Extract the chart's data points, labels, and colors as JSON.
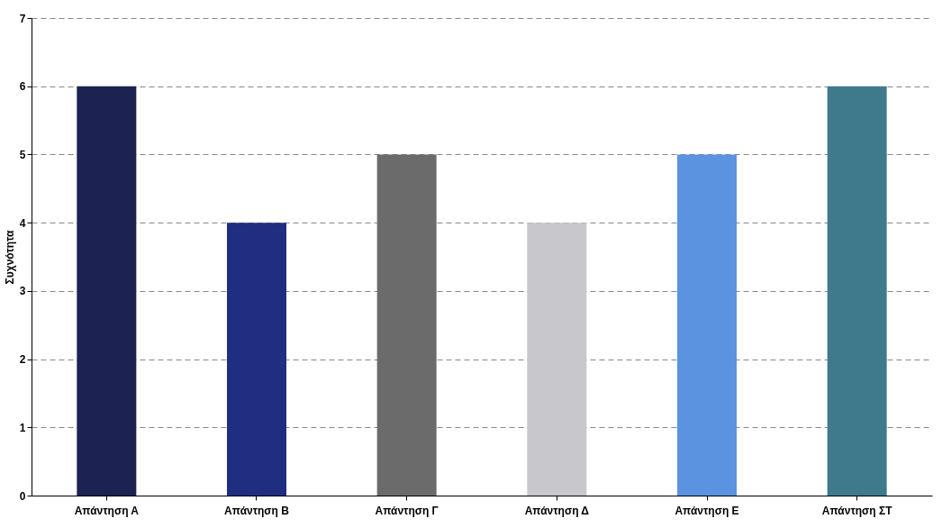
{
  "chart_data": {
    "type": "bar",
    "ylabel": "Συχνότητα",
    "categories": [
      "Απάντηση Α",
      "Απάντηση Β",
      "Απάντηση Γ",
      "Απάντηση Δ",
      "Απάντηση Ε",
      "Απάντηση ΣΤ"
    ],
    "values": [
      6,
      4,
      5,
      4,
      5,
      6
    ],
    "colors": [
      "#1c2352",
      "#1f2e80",
      "#6b6b6b",
      "#c8c8cc",
      "#5b93e0",
      "#3f7a8c"
    ],
    "ylim": [
      0,
      7
    ],
    "yticks": [
      0,
      1,
      2,
      3,
      4,
      5,
      6,
      7
    ],
    "grid": "y"
  }
}
